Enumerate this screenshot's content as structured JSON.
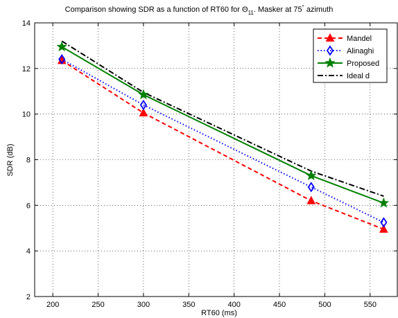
{
  "chart_data": {
    "type": "line",
    "title_main": "Comparison showing SDR as a function of RT60 for Θ",
    "title_sub": "11",
    "title_mid": ". Masker at 75",
    "title_sup": "°",
    "title_end": " azimuth",
    "xlabel": "RT60 (ms)",
    "ylabel": "SDR (dB)",
    "xlim": [
      180,
      580
    ],
    "ylim": [
      2,
      14
    ],
    "xticks": [
      200,
      250,
      300,
      350,
      400,
      450,
      500,
      550
    ],
    "yticks": [
      2,
      4,
      6,
      8,
      10,
      12,
      14
    ],
    "grid": true,
    "legend_position": "top-right",
    "series": [
      {
        "name": "Mandel",
        "x": [
          210,
          300,
          485,
          565
        ],
        "y": [
          12.35,
          10.05,
          6.2,
          4.95
        ],
        "color": "#ff0000",
        "dash": "6,4",
        "marker": "triangle"
      },
      {
        "name": "Alinaghi",
        "x": [
          210,
          300,
          485,
          565
        ],
        "y": [
          12.4,
          10.4,
          6.8,
          5.25
        ],
        "color": "#0000ff",
        "dash": "1.5,3",
        "marker": "diamond"
      },
      {
        "name": "Proposed",
        "x": [
          210,
          300,
          485,
          565
        ],
        "y": [
          12.95,
          10.85,
          7.3,
          6.1
        ],
        "color": "#008000",
        "dash": "",
        "marker": "star"
      },
      {
        "name": "Ideal d",
        "x": [
          210,
          300,
          485,
          565
        ],
        "y": [
          13.2,
          10.95,
          7.5,
          6.4
        ],
        "color": "#000000",
        "dash": "8,3,2,3",
        "marker": "none"
      }
    ]
  }
}
